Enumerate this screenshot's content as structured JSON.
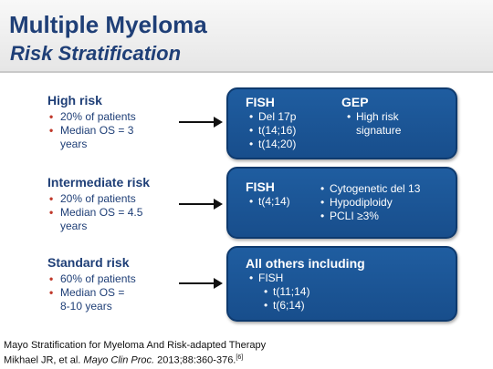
{
  "header": {
    "title": "Multiple Myeloma",
    "subtitle": "Risk Stratification"
  },
  "risks": [
    {
      "label": "High risk",
      "bullets": [
        "20% of patients",
        "Median OS = 3\nyears"
      ]
    },
    {
      "label": "Intermediate risk",
      "bullets": [
        "20% of patients",
        "Median OS = 4.5\nyears"
      ]
    },
    {
      "label": "Standard risk",
      "bullets": [
        "60% of patients",
        "Median OS =\n8-10 years"
      ]
    }
  ],
  "boxes": {
    "high": {
      "fish_label": "FISH",
      "fish_items": [
        "Del 17p",
        "t(14;16)",
        "t(14;20)"
      ],
      "gep_label": "GEP",
      "gep_items": [
        "High risk",
        "signature"
      ]
    },
    "intermediate": {
      "fish_label": "FISH",
      "fish_items": [
        "t(4;14)"
      ],
      "other_items": [
        "Cytogenetic del 13",
        "Hypodiploidy",
        "PCLI ≥3%"
      ]
    },
    "standard": {
      "heading": "All others including",
      "fish_label": "FISH",
      "fish_items": [
        "t(11;14)",
        "t(6;14)"
      ]
    }
  },
  "footer": {
    "line1": "Mayo Stratification for Myeloma And Risk-adapted Therapy",
    "line2_pre": "Mikhael JR, et al. ",
    "line2_journal": "Mayo Clin Proc.",
    "line2_post": " 2013;88:360-376.",
    "ref": "[6]"
  },
  "colors": {
    "title": "#1f3f77",
    "box_fill": "#1f5da0",
    "bullet": "#c0392b"
  }
}
